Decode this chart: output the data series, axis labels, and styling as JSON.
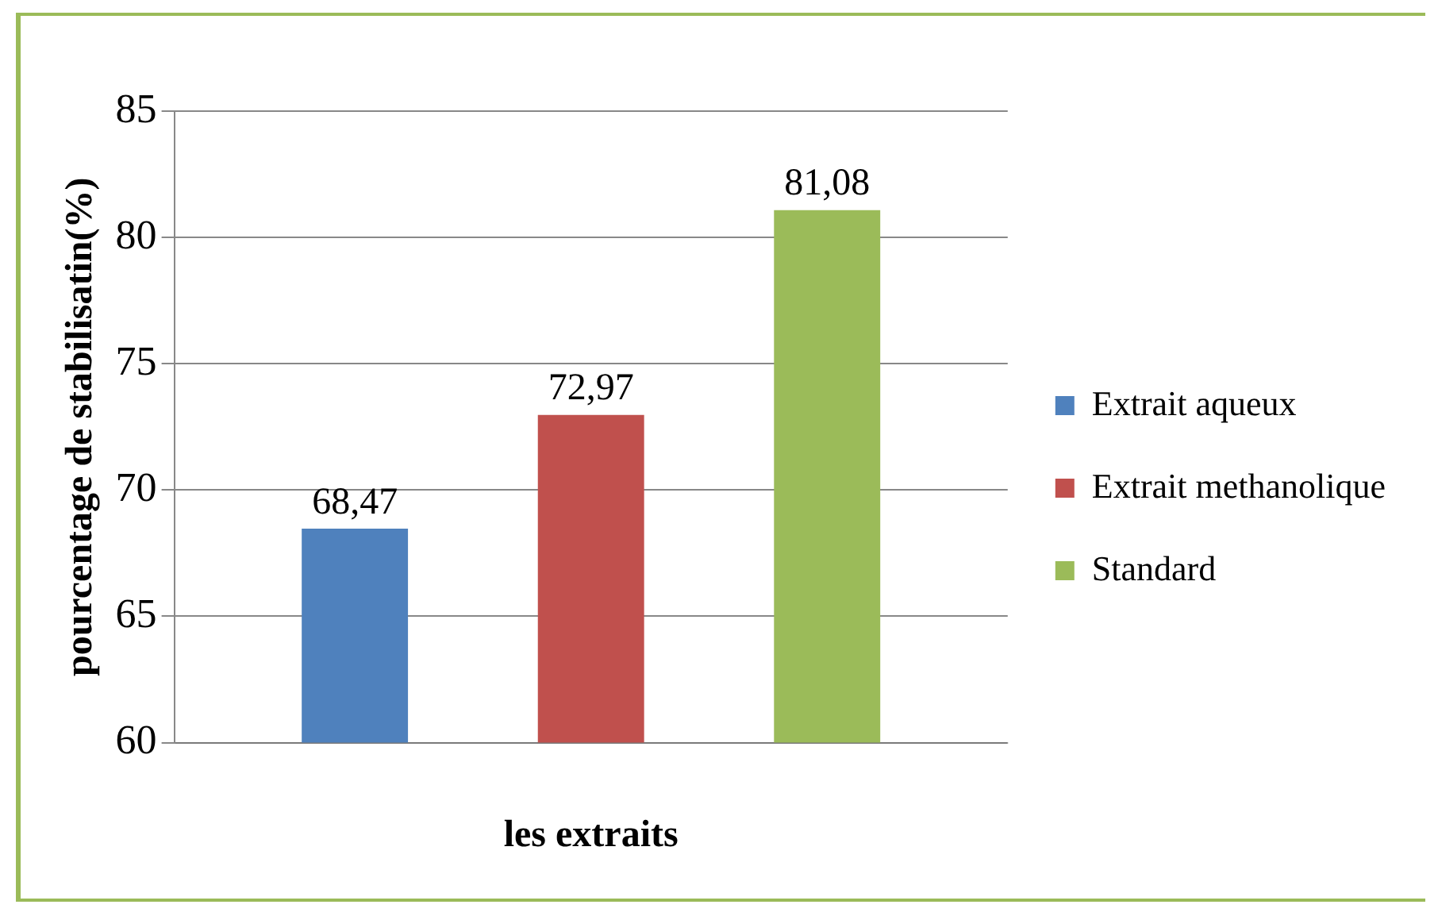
{
  "chart_data": {
    "type": "bar",
    "xlabel": "les extraits",
    "ylabel": "pourcentage de stabilisatin(%)",
    "categories": [
      null
    ],
    "series": [
      {
        "name": "Extrait aqueux",
        "color": "#4f81bd",
        "values": [
          68.47
        ],
        "value_labels": [
          "68,47"
        ]
      },
      {
        "name": "Extrait methanolique",
        "color": "#c0504d",
        "values": [
          72.97
        ],
        "value_labels": [
          "72,97"
        ]
      },
      {
        "name": "Standard",
        "color": "#9bbb59",
        "values": [
          81.08
        ],
        "value_labels": [
          "81,08"
        ]
      }
    ],
    "ylim": [
      60,
      85
    ],
    "yticks": [
      60,
      65,
      70,
      75,
      80,
      85
    ],
    "grid": "y",
    "legend": "right"
  }
}
